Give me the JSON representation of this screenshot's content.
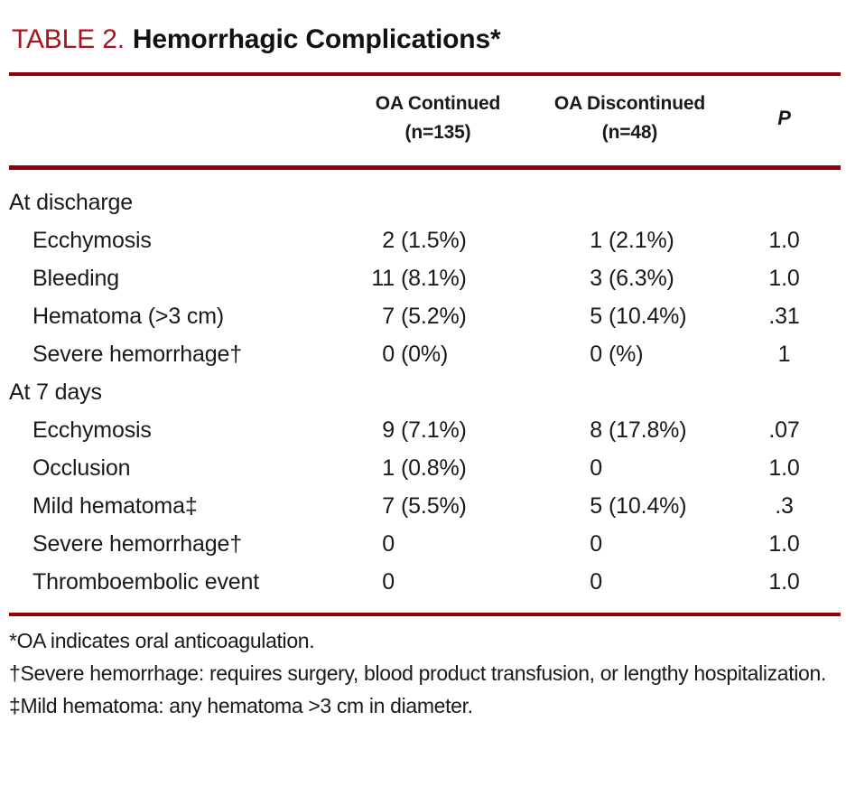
{
  "title": {
    "label": "TABLE 2.",
    "text": "Hemorrhagic Complications*"
  },
  "colors": {
    "title_red": "#A4161C",
    "rule_red": "#94000A",
    "text": "#1a1a1a"
  },
  "header": {
    "col1_line1": "OA Continued",
    "col1_line2": "(n=135)",
    "col2_line1": "OA Discontinued",
    "col2_line2": "(n=48)",
    "p": "P"
  },
  "table": {
    "rows": [
      {
        "label": "At discharge"
      },
      {
        "label": "Ecchymosis",
        "c1n": "2",
        "c1p": "(1.5%)",
        "c2n": "1",
        "c2p": "(2.1%)",
        "p": "1.0"
      },
      {
        "label": "Bleeding",
        "c1n": "11",
        "c1p": "(8.1%)",
        "c2n": "3",
        "c2p": "(6.3%)",
        "p": "1.0"
      },
      {
        "label": "Hematoma (>3 cm)",
        "c1n": "7",
        "c1p": "(5.2%)",
        "c2n": "5",
        "c2p": "(10.4%)",
        "p": ".31"
      },
      {
        "label": "Severe hemorrhage†",
        "c1n": "0",
        "c1p": "(0%)",
        "c2n": "0",
        "c2p": "(%)",
        "p": "1"
      },
      {
        "label": "At 7 days"
      },
      {
        "label": "Ecchymosis",
        "c1n": "9",
        "c1p": "(7.1%)",
        "c2n": "8",
        "c2p": "(17.8%)",
        "p": ".07"
      },
      {
        "label": "Occlusion",
        "c1n": "1",
        "c1p": "(0.8%)",
        "c2n": "0",
        "p": "1.0"
      },
      {
        "label": "Mild hematoma‡",
        "c1n": "7",
        "c1p": "(5.5%)",
        "c2n": "5",
        "c2p": "(10.4%)",
        "p": ".3"
      },
      {
        "label": "Severe hemorrhage†",
        "c1n": "0",
        "c2n": "0",
        "p": "1.0"
      },
      {
        "label": "Thromboembolic event",
        "c1n": "0",
        "c2n": "0",
        "p": "1.0"
      }
    ]
  },
  "footnotes": [
    "*OA indicates oral anticoagulation.",
    "†Severe hemorrhage: requires surgery, blood product transfusion, or lengthy hospitalization.",
    "‡Mild hematoma: any hematoma >3 cm in diameter."
  ]
}
